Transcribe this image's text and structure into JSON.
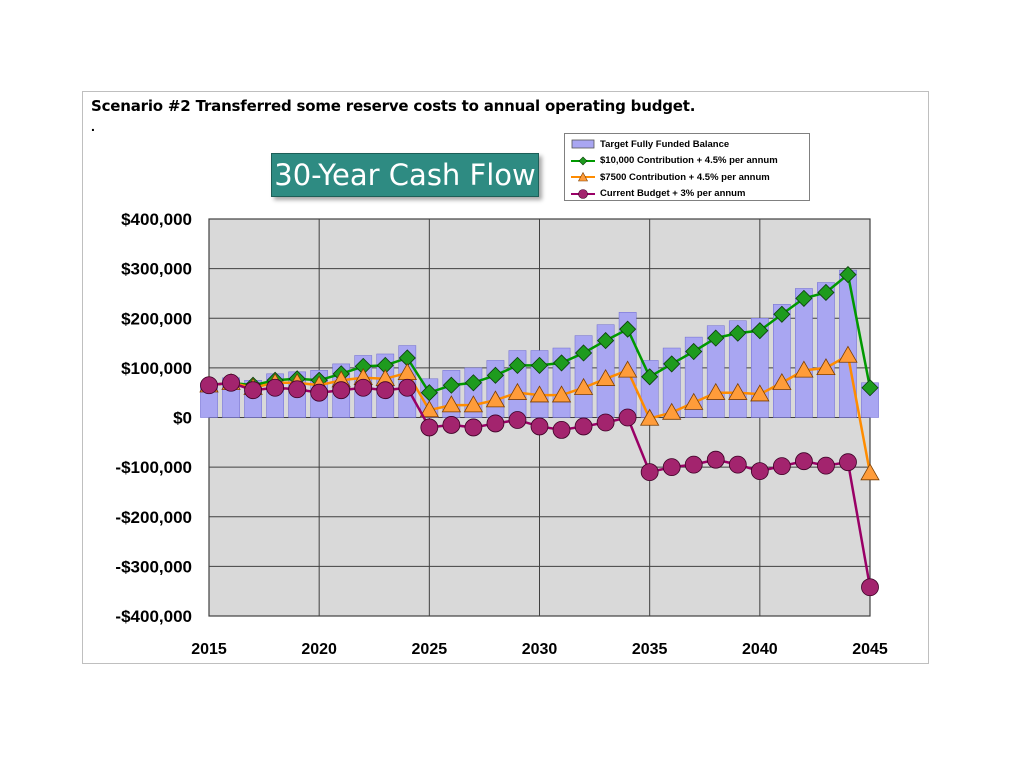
{
  "heading": "Scenario #2 Transferred some reserve costs to annual operating budget.",
  "heading_dot": ".",
  "chart_data": {
    "type": "bar",
    "title": "30-Year Cash Flow",
    "x": [
      2015,
      2016,
      2017,
      2018,
      2019,
      2020,
      2021,
      2022,
      2023,
      2024,
      2025,
      2026,
      2027,
      2028,
      2029,
      2030,
      2031,
      2032,
      2033,
      2034,
      2035,
      2036,
      2037,
      2038,
      2039,
      2040,
      2041,
      2042,
      2043,
      2044,
      2045
    ],
    "xlim": [
      2015,
      2045
    ],
    "xticks": [
      "2015",
      "2020",
      "2025",
      "2030",
      "2035",
      "2040",
      "2045"
    ],
    "ylim": [
      -400000,
      400000
    ],
    "yticks": [
      "$400,000",
      "$300,000",
      "$200,000",
      "$100,000",
      "$0",
      "-$100,000",
      "-$200,000",
      "-$300,000",
      "-$400,000"
    ],
    "ytick_values": [
      400000,
      300000,
      200000,
      100000,
      0,
      -100000,
      -200000,
      -300000,
      -400000
    ],
    "grid": true,
    "legend_position": "top-right",
    "series": [
      {
        "name": "Target Fully Funded Balance",
        "type": "bar",
        "color": "#a9a6f2",
        "values": [
          70000,
          80000,
          75000,
          88000,
          92000,
          95000,
          108000,
          125000,
          128000,
          145000,
          78000,
          95000,
          100000,
          115000,
          135000,
          135000,
          140000,
          165000,
          187000,
          212000,
          115000,
          140000,
          162000,
          185000,
          195000,
          200000,
          228000,
          260000,
          272000,
          297000,
          70000
        ]
      },
      {
        "name": "$10,000 Contribution + 4.5% per annum",
        "type": "line",
        "marker": "diamond",
        "color": "#009900",
        "marker_color": "#1e9b1e",
        "values": [
          65000,
          70000,
          65000,
          75000,
          78000,
          75000,
          88000,
          103000,
          105000,
          120000,
          50000,
          65000,
          70000,
          85000,
          105000,
          105000,
          110000,
          130000,
          155000,
          178000,
          82000,
          108000,
          133000,
          160000,
          170000,
          175000,
          208000,
          240000,
          252000,
          288000,
          60000
        ]
      },
      {
        "name": "$7500 Contribution + 4.5% per annum",
        "type": "line",
        "marker": "triangle",
        "color": "#ff8c00",
        "marker_color": "#ff9c3a",
        "values": [
          65000,
          70000,
          60000,
          70000,
          70000,
          65000,
          75000,
          80000,
          78000,
          90000,
          15000,
          25000,
          25000,
          35000,
          50000,
          45000,
          45000,
          60000,
          78000,
          95000,
          -2000,
          10000,
          30000,
          50000,
          50000,
          47000,
          70000,
          95000,
          100000,
          125000,
          -112000
        ]
      },
      {
        "name": "Current Budget + 3% per annum",
        "type": "line",
        "marker": "circle",
        "color": "#990066",
        "marker_color": "#a3246e",
        "values": [
          65000,
          70000,
          55000,
          60000,
          57000,
          50000,
          55000,
          60000,
          55000,
          60000,
          -20000,
          -15000,
          -20000,
          -12000,
          -5000,
          -18000,
          -25000,
          -18000,
          -10000,
          0,
          -110000,
          -100000,
          -95000,
          -85000,
          -95000,
          -108000,
          -98000,
          -88000,
          -97000,
          -90000,
          -342000
        ]
      }
    ]
  }
}
